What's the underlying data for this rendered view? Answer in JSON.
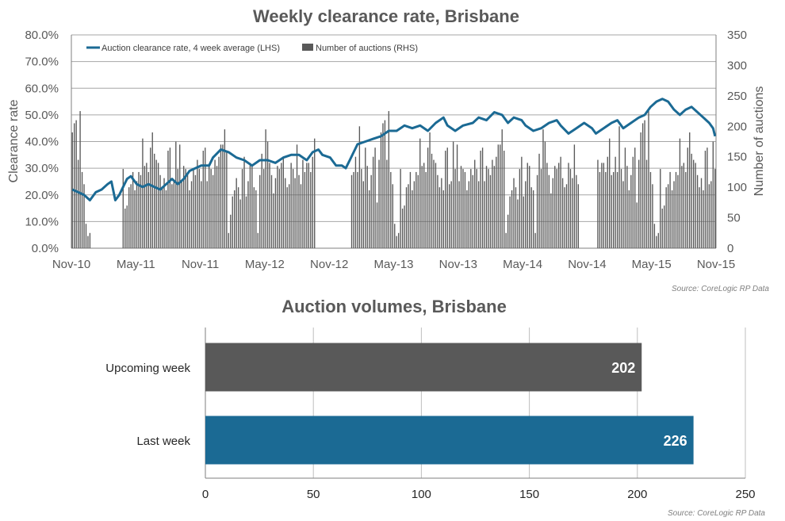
{
  "chart_data": [
    {
      "type": "line",
      "title": "Weekly clearance rate, Brisbane",
      "ylabel": "Clearance rate",
      "y2label": "Number of auctions",
      "ylim": [
        0,
        80
      ],
      "y2lim": [
        0,
        350
      ],
      "yticks": [
        "0.0%",
        "10.0%",
        "20.0%",
        "30.0%",
        "40.0%",
        "50.0%",
        "60.0%",
        "70.0%",
        "80.0%"
      ],
      "y2ticks": [
        "0",
        "50",
        "100",
        "150",
        "200",
        "250",
        "300",
        "350"
      ],
      "xticks": [
        "Nov-10",
        "May-11",
        "Nov-11",
        "May-12",
        "Nov-12",
        "May-13",
        "Nov-13",
        "May-14",
        "Nov-14",
        "May-15",
        "Nov-15"
      ],
      "legend": {
        "placement": "top-left",
        "line_label": "Auction clearance rate, 4 week average (LHS)",
        "bar_label": "Number of auctions (RHS)"
      },
      "source": "Source: CoreLogic  RP Data",
      "grid": true,
      "colors": {
        "line": "#1b6a94",
        "bars": "#595959"
      },
      "series": [
        {
          "name": "Auction clearance rate, 4 week average (LHS)",
          "type": "line",
          "axis": "left",
          "points": [
            [
              0,
              22
            ],
            [
              3,
              21
            ],
            [
              6,
              20
            ],
            [
              9,
              18
            ],
            [
              12,
              21
            ],
            [
              15,
              22
            ],
            [
              18,
              24
            ],
            [
              20,
              25
            ],
            [
              22,
              18
            ],
            [
              24,
              20
            ],
            [
              26,
              23
            ],
            [
              28,
              26
            ],
            [
              30,
              27
            ],
            [
              33,
              24
            ],
            [
              36,
              23
            ],
            [
              39,
              24
            ],
            [
              42,
              23
            ],
            [
              45,
              22
            ],
            [
              48,
              24
            ],
            [
              51,
              26
            ],
            [
              54,
              24
            ],
            [
              57,
              26
            ],
            [
              60,
              29
            ],
            [
              63,
              30
            ],
            [
              66,
              31
            ],
            [
              70,
              31
            ],
            [
              72,
              34
            ],
            [
              76,
              37
            ],
            [
              80,
              36
            ],
            [
              84,
              34
            ],
            [
              88,
              33
            ],
            [
              92,
              31
            ],
            [
              96,
              33
            ],
            [
              100,
              33
            ],
            [
              104,
              32
            ],
            [
              108,
              34
            ],
            [
              112,
              35
            ],
            [
              116,
              35
            ],
            [
              120,
              33
            ],
            [
              123,
              36
            ],
            [
              126,
              37
            ],
            [
              128,
              35
            ],
            [
              132,
              34
            ],
            [
              135,
              31
            ],
            [
              138,
              31
            ],
            [
              140,
              30
            ],
            [
              142,
              33
            ],
            [
              146,
              39
            ],
            [
              150,
              40
            ],
            [
              154,
              41
            ],
            [
              158,
              42
            ],
            [
              162,
              44
            ],
            [
              166,
              44
            ],
            [
              170,
              46
            ],
            [
              174,
              45
            ],
            [
              178,
              46
            ],
            [
              182,
              44
            ],
            [
              186,
              47
            ],
            [
              190,
              49
            ],
            [
              192,
              46
            ],
            [
              196,
              44
            ],
            [
              200,
              46
            ],
            [
              205,
              47
            ],
            [
              208,
              49
            ],
            [
              212,
              48
            ],
            [
              216,
              51
            ],
            [
              220,
              50
            ],
            [
              223,
              47
            ],
            [
              226,
              49
            ],
            [
              230,
              48
            ],
            [
              232,
              46
            ],
            [
              236,
              44
            ],
            [
              240,
              45
            ],
            [
              244,
              47
            ],
            [
              248,
              48
            ],
            [
              250,
              46
            ],
            [
              254,
              43
            ],
            [
              258,
              45
            ],
            [
              262,
              47
            ],
            [
              266,
              45
            ],
            [
              268,
              43
            ],
            [
              272,
              45
            ],
            [
              276,
              47
            ],
            [
              279,
              48
            ],
            [
              282,
              45
            ],
            [
              286,
              47
            ],
            [
              290,
              49
            ],
            [
              293,
              50
            ],
            [
              296,
              53
            ],
            [
              299,
              55
            ],
            [
              302,
              56
            ],
            [
              305,
              55
            ],
            [
              308,
              52
            ],
            [
              311,
              50
            ],
            [
              314,
              52
            ],
            [
              317,
              53
            ],
            [
              320,
              51
            ],
            [
              323,
              49
            ],
            [
              326,
              47
            ],
            [
              328,
              45
            ],
            [
              329,
              42
            ]
          ]
        },
        {
          "name": "Number of auctions (RHS)",
          "type": "bar",
          "axis": "right",
          "gaps": [
            [
              10,
              25
            ],
            [
              125,
              142
            ],
            [
              260,
              268
            ]
          ],
          "values": [
            190,
            205,
            210,
            145,
            225,
            125,
            105,
            40,
            20,
            25,
            130,
            65,
            70,
            100,
            105,
            125,
            95,
            110,
            125,
            120,
            180,
            135,
            140,
            125,
            165,
            190,
            155,
            145,
            140,
            120,
            100,
            115,
            95,
            160,
            165,
            105,
            110,
            175,
            130,
            170,
            110,
            135,
            130,
            125,
            95,
            110,
            130,
            120,
            145,
            130,
            110,
            160,
            165,
            110,
            135,
            130,
            120,
            145,
            135,
            150,
            170,
            170,
            195,
            160,
            25,
            55,
            85,
            95,
            115,
            100,
            80,
            130,
            150,
            85,
            110,
            140,
            135,
            100,
            95,
            25,
            120,
            155,
            130,
            195,
            175,
            140,
            120,
            90,
            115,
            135,
            130,
            140,
            150,
            115,
            100,
            105,
            140,
            130,
            115,
            170,
            120,
            105,
            145,
            125,
            140,
            140,
            125,
            150,
            180,
            120,
            125,
            150,
            125,
            200,
            130,
            110,
            165,
            135,
            95,
            120,
            150,
            165,
            75,
            145
          ]
        }
      ]
    },
    {
      "type": "bar",
      "orientation": "horizontal",
      "title": "Auction volumes, Brisbane",
      "categories": [
        "Upcoming week",
        "Last week"
      ],
      "values": [
        202,
        226
      ],
      "colors": [
        "#595959",
        "#1b6a94"
      ],
      "xlim": [
        0,
        250
      ],
      "xticks": [
        "0",
        "50",
        "100",
        "150",
        "200",
        "250"
      ],
      "grid": true,
      "source": "Source: CoreLogic  RP Data"
    }
  ]
}
